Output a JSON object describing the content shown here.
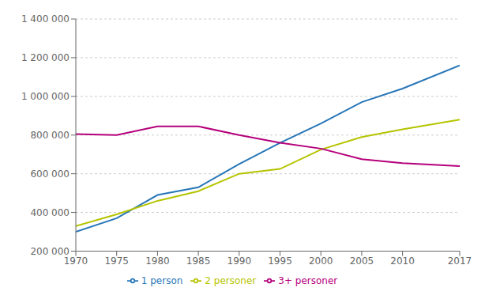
{
  "chart_data": {
    "type": "line",
    "x": [
      1970,
      1975,
      1980,
      1985,
      1990,
      1995,
      2000,
      2005,
      2010,
      2017
    ],
    "series": [
      {
        "name": "1 person",
        "color": "#2776b8",
        "values": [
          300000,
          370000,
          490000,
          530000,
          650000,
          760000,
          860000,
          970000,
          1040000,
          1160000
        ]
      },
      {
        "name": "2 personer",
        "color": "#b5c400",
        "values": [
          330000,
          390000,
          460000,
          510000,
          600000,
          625000,
          725000,
          790000,
          830000,
          880000
        ]
      },
      {
        "name": "3+ personer",
        "color": "#b5007b",
        "values": [
          805000,
          800000,
          845000,
          845000,
          800000,
          760000,
          730000,
          675000,
          655000,
          640000
        ]
      }
    ],
    "xlim": [
      1970,
      2017
    ],
    "xticks": [
      1970,
      1975,
      1980,
      1985,
      1990,
      1995,
      2000,
      2005,
      2010,
      2017
    ],
    "ylim": [
      200000,
      1400000
    ],
    "yticks": [
      {
        "value": 200000,
        "label": "200 000"
      },
      {
        "value": 400000,
        "label": "400 000"
      },
      {
        "value": 600000,
        "label": "600 000"
      },
      {
        "value": 800000,
        "label": "800 000"
      },
      {
        "value": 1000000,
        "label": "1 000 000"
      },
      {
        "value": 1200000,
        "label": "1 200 000"
      },
      {
        "value": 1400000,
        "label": "1 400 000"
      }
    ],
    "grid": true,
    "legend": "bottom"
  }
}
